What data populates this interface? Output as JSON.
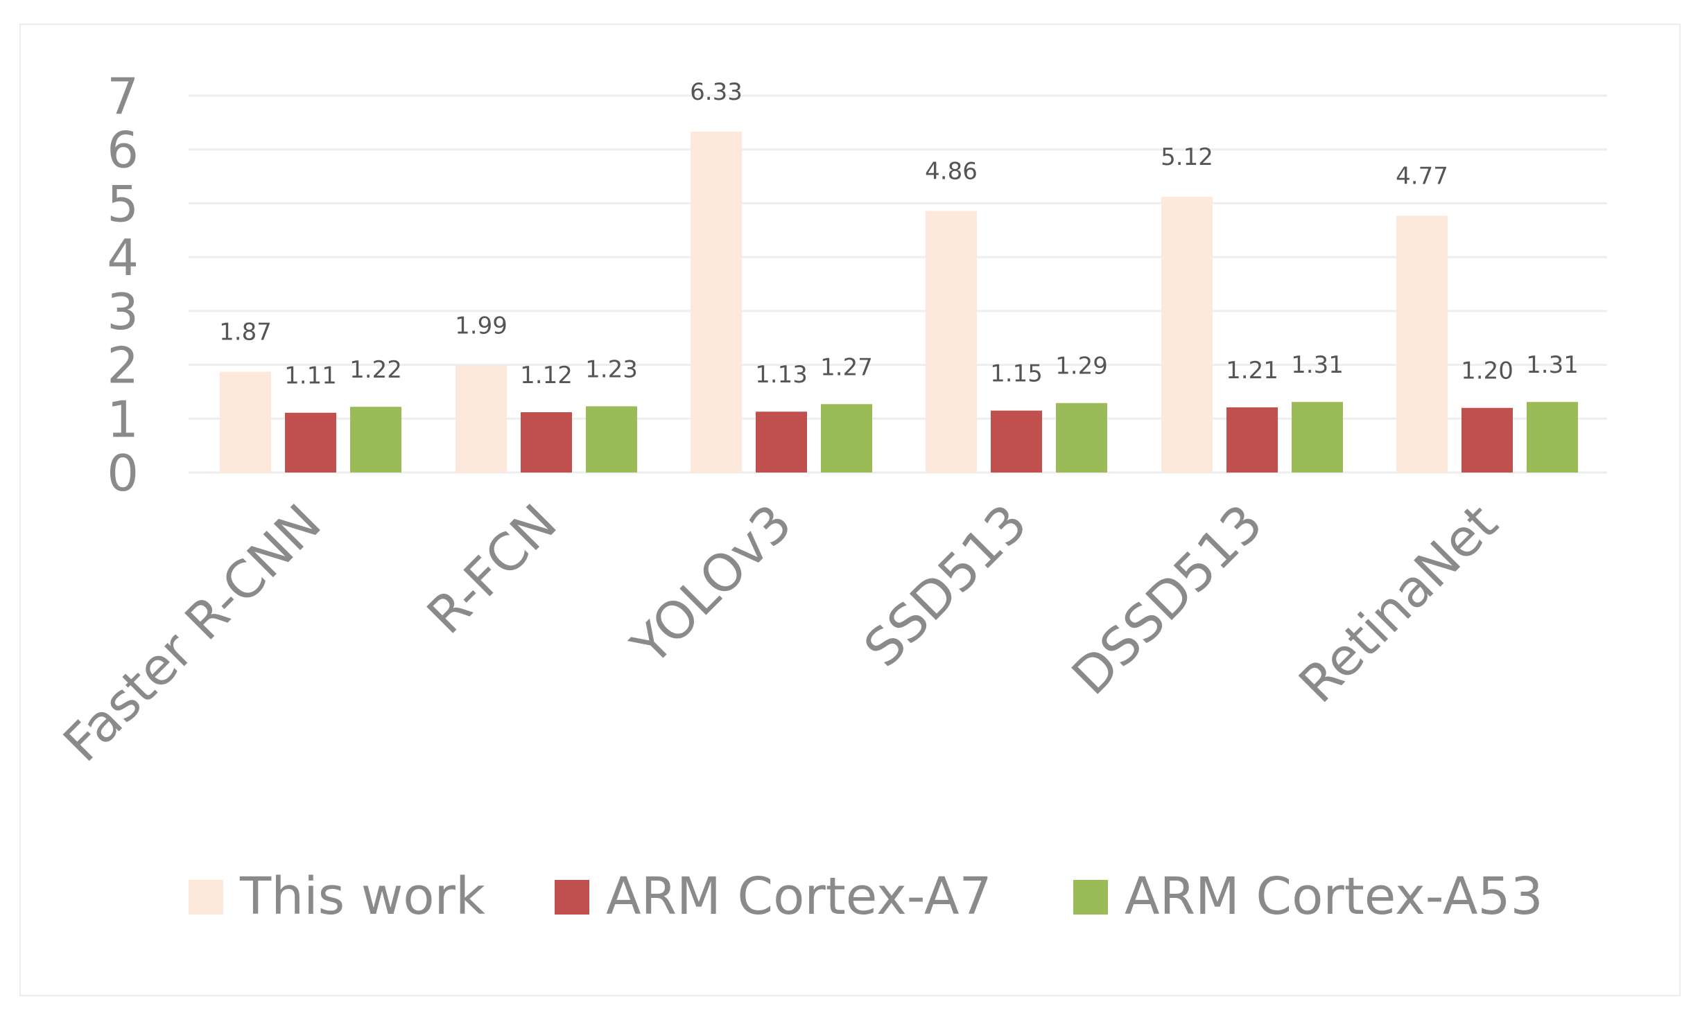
{
  "chart_data": {
    "type": "bar",
    "title": "",
    "xlabel": "",
    "ylabel": "",
    "ylim": [
      0,
      7
    ],
    "yticks": [
      0,
      1,
      2,
      3,
      4,
      5,
      6,
      7
    ],
    "grid": true,
    "legend": "bottom",
    "categories": [
      "Faster R-CNN",
      "R-FCN",
      "YOLOv3",
      "SSD513",
      "DSSD513",
      "RetinaNet"
    ],
    "series": [
      {
        "name": "This work",
        "color": "#fde9dc",
        "values": [
          1.87,
          1.99,
          6.33,
          4.86,
          5.12,
          4.77
        ],
        "labels": [
          "1.87",
          "1.99",
          "6.33",
          "4.86",
          "5.12",
          "4.77"
        ]
      },
      {
        "name": "ARM Cortex-A7",
        "color": "#c0504d",
        "values": [
          1.11,
          1.12,
          1.13,
          1.15,
          1.21,
          1.2
        ],
        "labels": [
          "1.11",
          "1.12",
          "1.13",
          "1.15",
          "1.21",
          "1.20"
        ]
      },
      {
        "name": "ARM Cortex-A53",
        "color": "#9bbb59",
        "values": [
          1.22,
          1.23,
          1.27,
          1.29,
          1.31,
          1.31
        ],
        "labels": [
          "1.22",
          "1.23",
          "1.27",
          "1.29",
          "1.31",
          "1.31"
        ]
      }
    ]
  }
}
